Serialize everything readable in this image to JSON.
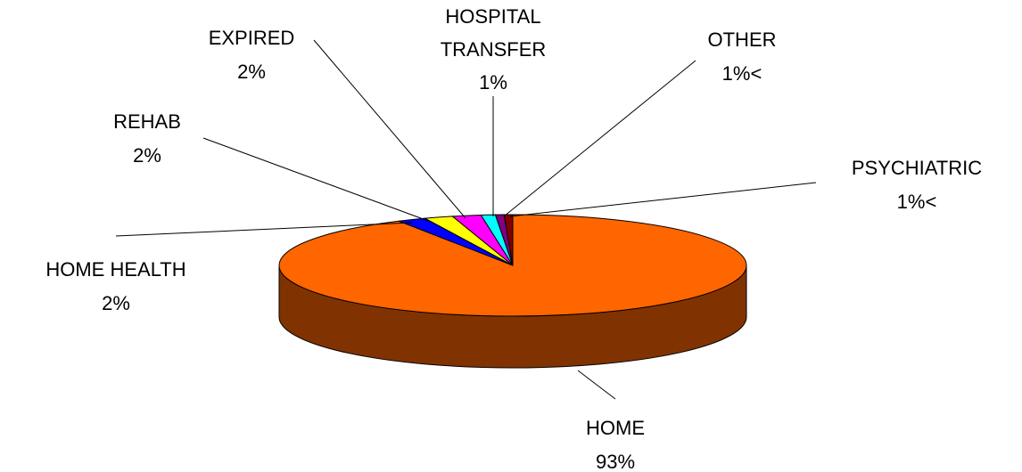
{
  "chart_data": {
    "type": "pie3d",
    "categories": [
      "HOME",
      "HOME HEALTH",
      "REHAB",
      "EXPIRED",
      "HOSPITAL TRANSFER",
      "OTHER",
      "PSYCHIATRIC"
    ],
    "values": [
      93,
      2,
      2,
      2,
      1,
      0.6,
      0.6
    ],
    "value_labels": [
      "93%",
      "2%",
      "2%",
      "2%",
      "1%",
      "1%<",
      "1%<"
    ],
    "colors": [
      "#ff6600",
      "#0000ff",
      "#ffff00",
      "#ff00ff",
      "#00ffff",
      "#800080",
      "#800000"
    ],
    "side_color": "#803300"
  }
}
